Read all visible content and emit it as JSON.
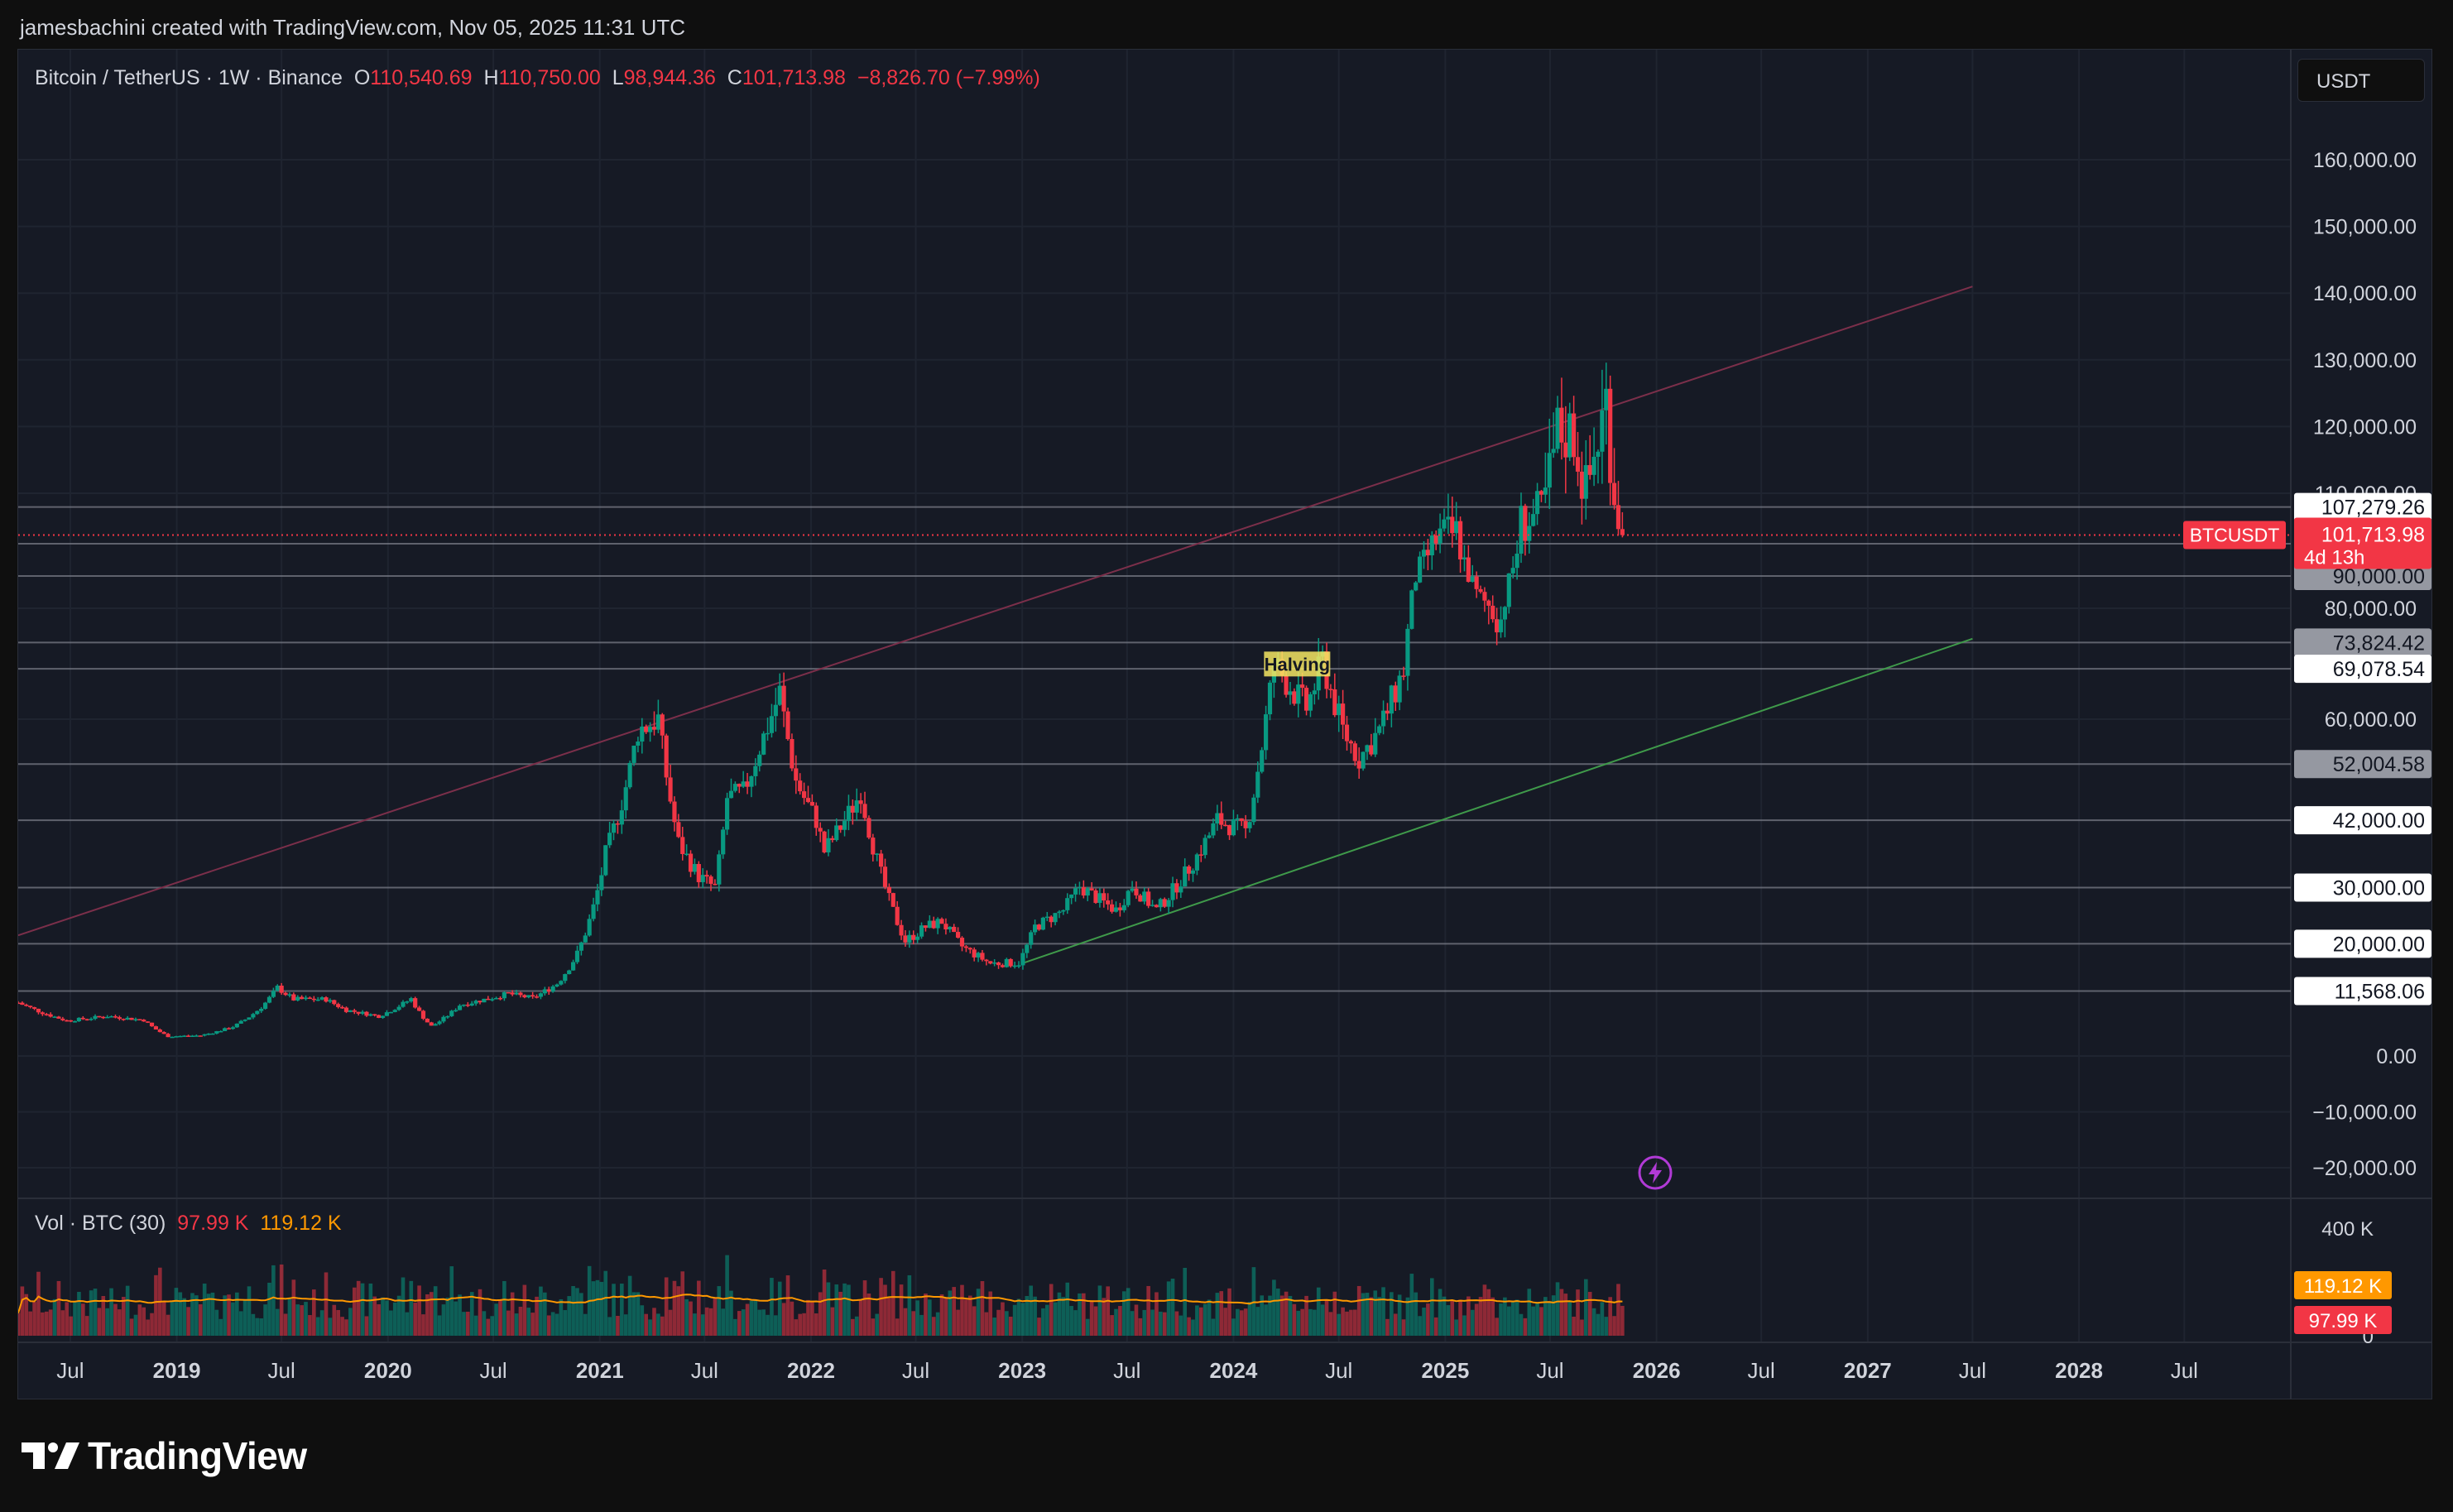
{
  "caption": "jamesbachini created with TradingView.com, Nov 05, 2025 11:31 UTC",
  "brand": {
    "name": "TradingView"
  },
  "legend": {
    "symbol": "Bitcoin / TetherUS · 1W · Binance",
    "o_label": "O",
    "o_value": "110,540.69",
    "h_label": "H",
    "h_value": "110,750.00",
    "l_label": "L",
    "l_value": "98,944.36",
    "c_label": "C",
    "c_value": "101,713.98",
    "change": "−8,826.70 (−7.99%)"
  },
  "volume_legend": {
    "label": "Vol · BTC (30)",
    "value": "97.99 K",
    "ma_value": "119.12 K"
  },
  "currency": "USDT",
  "colors": {
    "up": "#089981",
    "down": "#f23645",
    "background": "#161a25",
    "grid": "#1f2430",
    "text": "#d1d4dc",
    "ma": "#ff9800",
    "channel": "#7b2f4a",
    "support": "#3f9a4a"
  },
  "chart_data": {
    "type": "candlestick",
    "interval": "1W",
    "series_name": "Bitcoin / TetherUS",
    "x_ticks": [
      "Jul",
      "2019",
      "Jul",
      "2020",
      "Jul",
      "2021",
      "Jul",
      "2022",
      "Jul",
      "2023",
      "Jul",
      "2024",
      "Jul",
      "2025",
      "Jul",
      "2026",
      "Jul",
      "2027",
      "Jul",
      "2028",
      "Jul"
    ],
    "x_tick_dates": [
      "2018-07-01",
      "2019-01-01",
      "2019-07-01",
      "2020-01-01",
      "2020-07-01",
      "2021-01-01",
      "2021-07-01",
      "2022-01-01",
      "2022-07-01",
      "2023-01-01",
      "2023-07-01",
      "2024-01-01",
      "2024-07-01",
      "2025-01-01",
      "2025-07-01",
      "2026-01-01",
      "2026-07-01",
      "2027-01-01",
      "2027-07-01",
      "2028-01-01",
      "2028-07-01"
    ],
    "x_range": [
      "2018-04-02",
      "2029-01-01"
    ],
    "y_ticks": [
      "160,000.00",
      "150,000.00",
      "140,000.00",
      "130,000.00",
      "120,000.00",
      "110,000.00",
      "80,000.00",
      "60,000.00",
      "0.00",
      "−10,000.00",
      "−20,000.00"
    ],
    "y_tick_values": [
      160000,
      150000,
      140000,
      130000,
      120000,
      110000,
      80000,
      60000,
      0,
      -10000,
      -20000
    ],
    "price_levels": [
      {
        "label": "107,279.26",
        "value": 107279.26,
        "style": "white"
      },
      {
        "label": "100,000.00",
        "value": 100000,
        "style": "white"
      },
      {
        "label": "90,000.00",
        "value": 90000,
        "style": "grey"
      },
      {
        "label": "73,824.42",
        "value": 73824.42,
        "style": "grey"
      },
      {
        "label": "69,078.54",
        "value": 69078.54,
        "style": "white"
      },
      {
        "label": "52,004.58",
        "value": 52004.58,
        "style": "grey"
      },
      {
        "label": "42,000.00",
        "value": 42000,
        "style": "white"
      },
      {
        "label": "30,000.00",
        "value": 30000,
        "style": "white"
      },
      {
        "label": "20,000.00",
        "value": 20000,
        "style": "white"
      },
      {
        "label": "11,568.06",
        "value": 11568.06,
        "style": "white"
      }
    ],
    "last_price": {
      "tag": "BTCUSDT",
      "label": "101,713.98",
      "value": 101713.98,
      "countdown": "4d 13h"
    },
    "annotation": {
      "text": "Halving",
      "date": "2024-04-20",
      "value": 69500
    },
    "trendlines": [
      {
        "name": "channel",
        "from": [
          "2018-04-02",
          21500
        ],
        "to": [
          "2027-07-01",
          141000
        ]
      },
      {
        "name": "support",
        "from": [
          "2023-01-01",
          16500
        ],
        "to": [
          "2027-07-01",
          74500
        ]
      }
    ],
    "price_keypoints": [
      [
        "2018-04-02",
        9500
      ],
      [
        "2018-06-25",
        6300
      ],
      [
        "2018-09-03",
        7100
      ],
      [
        "2018-11-05",
        6400
      ],
      [
        "2018-12-17",
        3500
      ],
      [
        "2019-02-11",
        3650
      ],
      [
        "2019-04-08",
        5200
      ],
      [
        "2019-05-27",
        8700
      ],
      [
        "2019-06-24",
        12200
      ],
      [
        "2019-07-22",
        10100
      ],
      [
        "2019-09-16",
        10100
      ],
      [
        "2019-10-21",
        8200
      ],
      [
        "2019-12-16",
        7100
      ],
      [
        "2020-02-10",
        10200
      ],
      [
        "2020-03-16",
        5300
      ],
      [
        "2020-05-04",
        9100
      ],
      [
        "2020-07-27",
        11100
      ],
      [
        "2020-09-07",
        10300
      ],
      [
        "2020-10-19",
        12900
      ],
      [
        "2020-11-23",
        18200
      ],
      [
        "2020-12-21",
        26500
      ],
      [
        "2021-01-11",
        36000
      ],
      [
        "2021-02-15",
        48000
      ],
      [
        "2021-03-08",
        58000
      ],
      [
        "2021-04-12",
        60000
      ],
      [
        "2021-05-17",
        38000
      ],
      [
        "2021-06-21",
        32000
      ],
      [
        "2021-07-19",
        30000
      ],
      [
        "2021-08-09",
        46000
      ],
      [
        "2021-09-06",
        47000
      ],
      [
        "2021-10-04",
        55000
      ],
      [
        "2021-11-08",
        64800
      ],
      [
        "2021-12-06",
        49000
      ],
      [
        "2022-01-10",
        42000
      ],
      [
        "2022-01-24",
        36500
      ],
      [
        "2022-03-28",
        47000
      ],
      [
        "2022-05-09",
        30000
      ],
      [
        "2022-06-13",
        20500
      ],
      [
        "2022-07-18",
        23000
      ],
      [
        "2022-08-15",
        24000
      ],
      [
        "2022-09-19",
        19500
      ],
      [
        "2022-11-07",
        16500
      ],
      [
        "2022-12-26",
        16600
      ],
      [
        "2023-01-23",
        23000
      ],
      [
        "2023-03-13",
        26000
      ],
      [
        "2023-04-10",
        30200
      ],
      [
        "2023-06-12",
        26000
      ],
      [
        "2023-07-10",
        30300
      ],
      [
        "2023-08-21",
        26000
      ],
      [
        "2023-10-23",
        34500
      ],
      [
        "2023-12-04",
        42000
      ],
      [
        "2024-01-22",
        40000
      ],
      [
        "2024-02-26",
        60000
      ],
      [
        "2024-03-11",
        70000
      ],
      [
        "2024-05-06",
        62000
      ],
      [
        "2024-06-03",
        70500
      ],
      [
        "2024-07-08",
        58000
      ],
      [
        "2024-08-05",
        53000
      ],
      [
        "2024-09-09",
        58000
      ],
      [
        "2024-10-21",
        69000
      ],
      [
        "2024-11-11",
        90000
      ],
      [
        "2024-12-16",
        101000
      ],
      [
        "2025-01-20",
        102000
      ],
      [
        "2025-02-24",
        84000
      ],
      [
        "2025-04-07",
        78000
      ],
      [
        "2025-05-12",
        104000
      ],
      [
        "2025-06-16",
        106000
      ],
      [
        "2025-07-14",
        119000
      ],
      [
        "2025-08-11",
        119000
      ],
      [
        "2025-09-01",
        110000
      ],
      [
        "2025-10-06",
        124000
      ],
      [
        "2025-10-20",
        110000
      ],
      [
        "2025-11-03",
        101713.98
      ]
    ],
    "volume_axis": {
      "ticks": [
        "400 K",
        "0"
      ],
      "tick_values": [
        400000,
        0
      ]
    },
    "volume_level": 97990,
    "volume_ma_level": 119120
  }
}
